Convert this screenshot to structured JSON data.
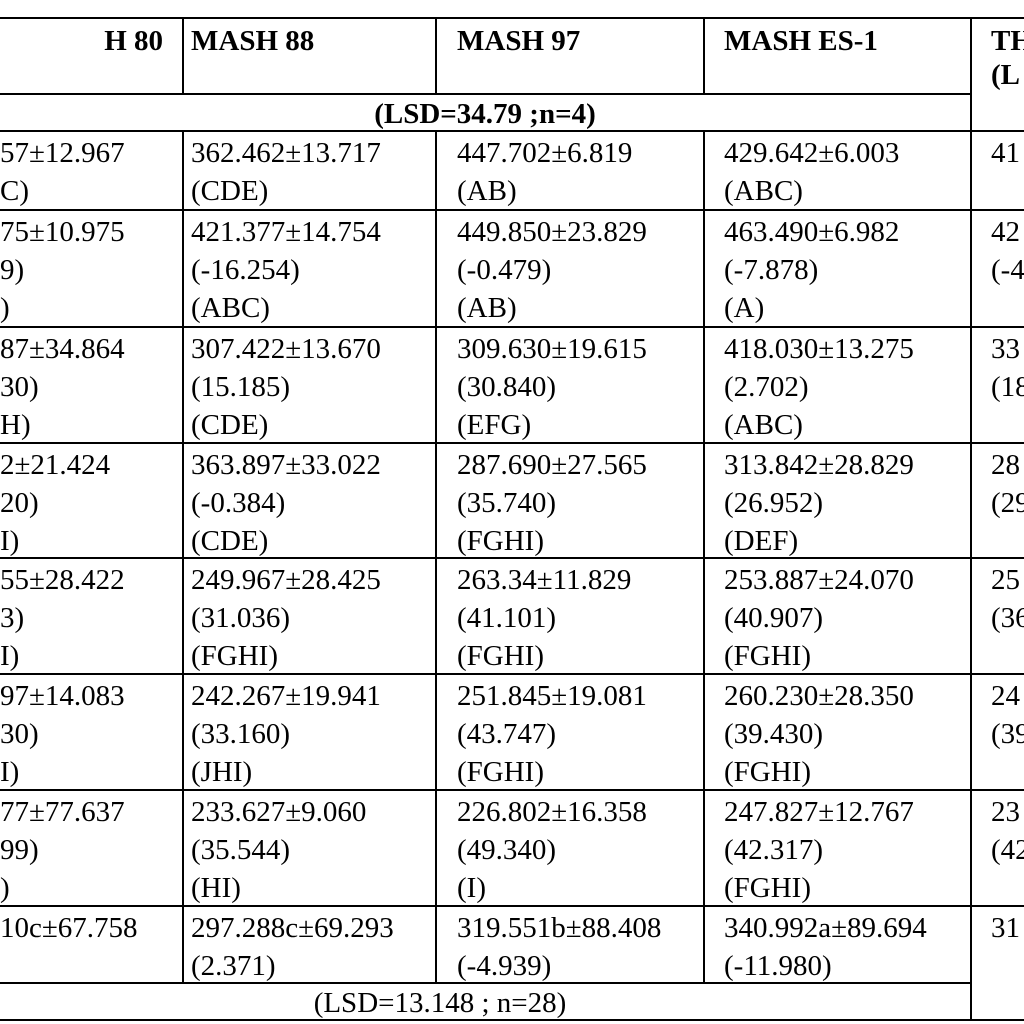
{
  "header": {
    "col1": "H 80",
    "col2": "MASH 88",
    "col3": "MASH 97",
    "col4": "MASH ES-1",
    "col5_line1": "TH",
    "col5_line2": "(L"
  },
  "lsd_top": "(LSD=34.79 ;n=4)",
  "rows": [
    {
      "col1": [
        "57±12.967",
        "C)"
      ],
      "col2": [
        "362.462±13.717",
        " (CDE)"
      ],
      "col3": [
        "447.702±6.819",
        " (AB)"
      ],
      "col4": [
        "429.642±6.003",
        " (ABC)"
      ],
      "col5": [
        "41"
      ]
    },
    {
      "col1": [
        "75±10.975",
        "9)",
        ")"
      ],
      "col2": [
        "421.377±14.754",
        " (-16.254)",
        "(ABC)"
      ],
      "col3": [
        "449.850±23.829",
        "(-0.479)",
        "(AB)"
      ],
      "col4": [
        "463.490±6.982",
        " (-7.878)",
        "(A)"
      ],
      "col5": [
        "42",
        "(-4"
      ]
    },
    {
      "col1": [
        "87±34.864",
        "30)",
        "H)"
      ],
      "col2": [
        "307.422±13.670",
        "(15.185)",
        "(CDE)"
      ],
      "col3": [
        "309.630±19.615",
        "(30.840)",
        "(EFG)"
      ],
      "col4": [
        "418.030±13.275",
        "(2.702)",
        "(ABC)"
      ],
      "col5": [
        "33",
        "(18"
      ]
    },
    {
      "col1": [
        "2±21.424",
        "20)",
        "I)"
      ],
      "col2": [
        "363.897±33.022",
        "(-0.384)",
        "(CDE)"
      ],
      "col3": [
        "287.690±27.565",
        "(35.740)",
        "(FGHI)"
      ],
      "col4": [
        "313.842±28.829",
        "(26.952)",
        "(DEF)"
      ],
      "col5": [
        "28",
        "(29"
      ]
    },
    {
      "col1": [
        "55±28.422",
        "3)",
        "I)"
      ],
      "col2": [
        "249.967±28.425",
        "(31.036)",
        "(FGHI)"
      ],
      "col3": [
        "263.34±11.829",
        "(41.101)",
        "(FGHI)"
      ],
      "col4": [
        "253.887±24.070",
        "(40.907)",
        "(FGHI)"
      ],
      "col5": [
        "25",
        "(36"
      ]
    },
    {
      "col1": [
        "97±14.083",
        "30)",
        "I)"
      ],
      "col2": [
        "242.267±19.941",
        "(33.160)",
        "(JHI)"
      ],
      "col3": [
        "251.845±19.081",
        "(43.747)",
        "(FGHI)"
      ],
      "col4": [
        "260.230±28.350",
        "(39.430)",
        "(FGHI)"
      ],
      "col5": [
        "24",
        "(39"
      ]
    },
    {
      "col1": [
        "77±77.637",
        "99)",
        ")"
      ],
      "col2": [
        "233.627±9.060",
        "(35.544)",
        "(HI)"
      ],
      "col3": [
        "226.802±16.358",
        "(49.340)",
        "(I)"
      ],
      "col4": [
        "247.827±12.767",
        "(42.317)",
        "(FGHI)"
      ],
      "col5": [
        "23",
        "(42"
      ]
    },
    {
      "col1": [
        "10c±67.758"
      ],
      "col2": [
        "297.288c±69.293",
        "(2.371)"
      ],
      "col3": [
        "319.551b±88.408",
        "(-4.939)"
      ],
      "col4": [
        "340.992a±89.694",
        "(-11.980)"
      ],
      "col5": [
        "31"
      ]
    }
  ],
  "lsd_bottom": "(LSD=13.148 ; n=28)"
}
